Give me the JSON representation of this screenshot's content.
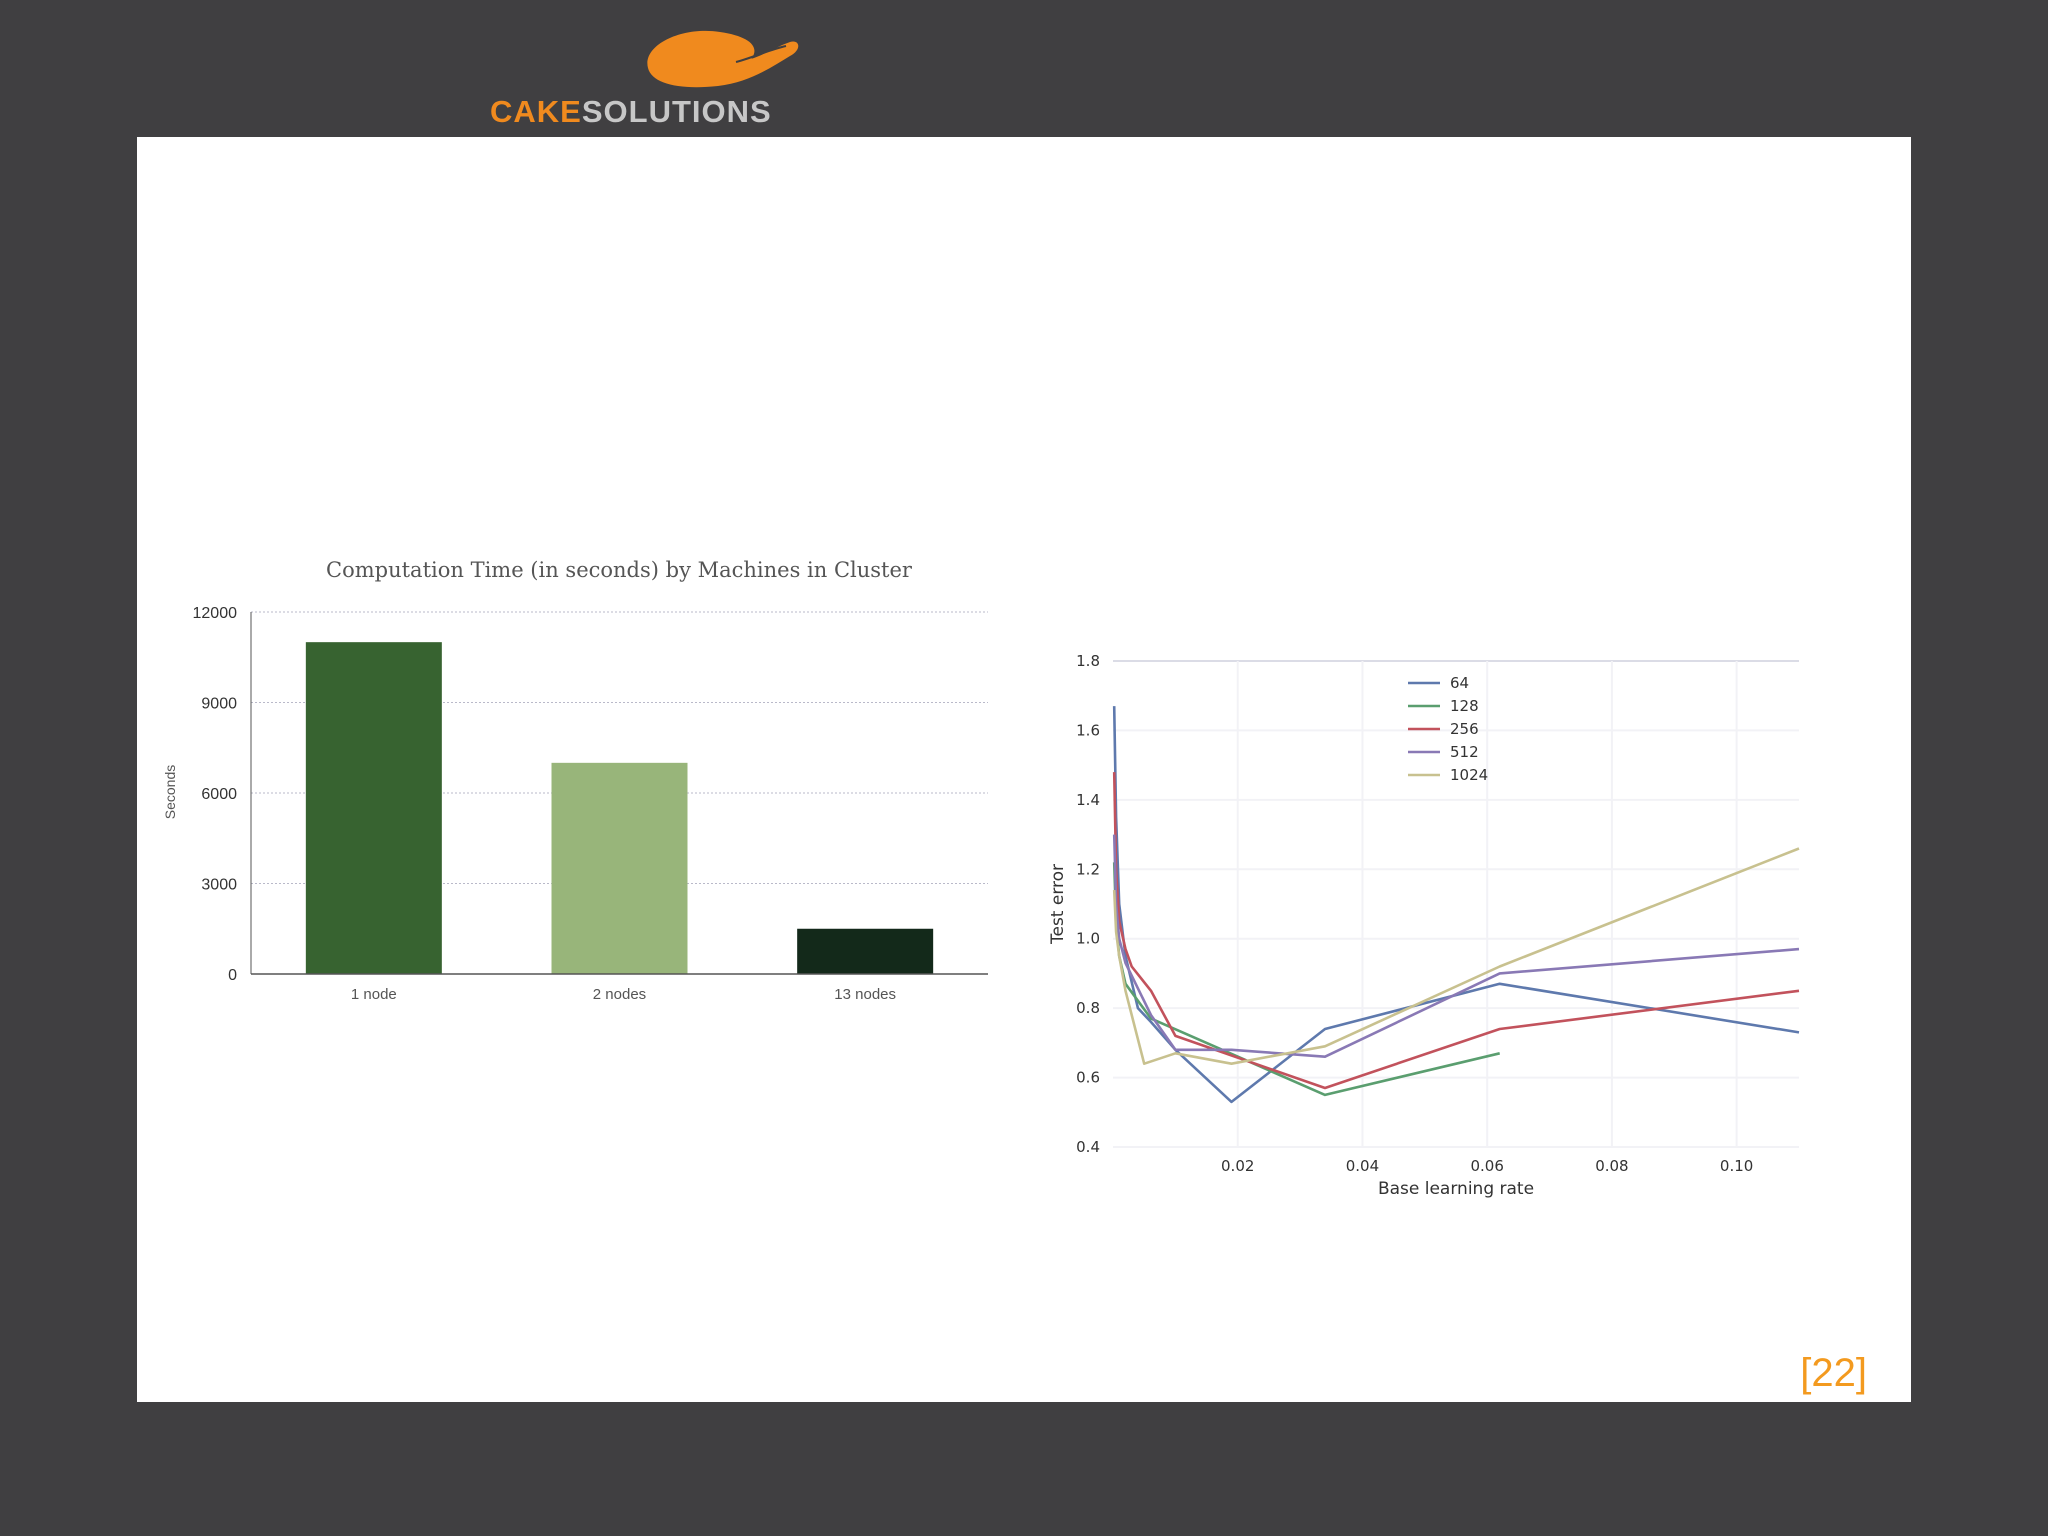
{
  "logo": {
    "text_part1": "CAKE",
    "text_part2": "SOLUTIONS",
    "colors": {
      "orange": "#f08a1e",
      "grey": "#c7c7c7"
    }
  },
  "slide": {
    "page_number": "[22]",
    "page_number_color": "#f39a1f",
    "background": "#ffffff",
    "frame": "#403f41"
  },
  "chart_data": [
    {
      "type": "bar",
      "title": "Computation Time (in seconds) by Machines in Cluster",
      "xlabel": "",
      "ylabel": "Seconds",
      "categories": [
        "1 node",
        "2 nodes",
        "13 nodes"
      ],
      "values": [
        11000,
        7000,
        1500
      ],
      "colors": [
        "#376330",
        "#98b57a",
        "#13291a"
      ],
      "ylim": [
        0,
        12000
      ],
      "yticks": [
        0,
        3000,
        6000,
        9000,
        12000
      ],
      "grid": true
    },
    {
      "type": "line",
      "title": "",
      "xlabel": "Base learning rate",
      "ylabel": "Test error",
      "xlim": [
        0,
        0.11
      ],
      "ylim": [
        0.4,
        1.8
      ],
      "xticks": [
        0.02,
        0.04,
        0.06,
        0.08,
        0.1
      ],
      "xtick_labels": [
        "0.02",
        "0.04",
        "0.06",
        "0.08",
        "0.10"
      ],
      "yticks": [
        0.4,
        0.6,
        0.8,
        1.0,
        1.2,
        1.4,
        1.6,
        1.8
      ],
      "ytick_labels": [
        "0.4",
        "0.6",
        "0.8",
        "1.0",
        "1.2",
        "1.4",
        "1.6",
        "1.8"
      ],
      "grid": true,
      "legend_position": "top-center",
      "series": [
        {
          "name": "64",
          "color": "#5e79ad",
          "x": [
            0.0002,
            0.0005,
            0.001,
            0.002,
            0.004,
            0.0061,
            0.01,
            0.019,
            0.034,
            0.062,
            0.11
          ],
          "y": [
            1.67,
            1.35,
            1.1,
            0.95,
            0.8,
            0.76,
            0.68,
            0.53,
            0.74,
            0.87,
            0.73
          ]
        },
        {
          "name": "128",
          "color": "#5a9e6f",
          "x": [
            0.0002,
            0.0005,
            0.001,
            0.002,
            0.0061,
            0.034,
            0.062
          ],
          "y": [
            1.22,
            1.05,
            0.95,
            0.87,
            0.77,
            0.55,
            0.67
          ]
        },
        {
          "name": "256",
          "color": "#c2525c",
          "x": [
            0.0002,
            0.0005,
            0.001,
            0.002,
            0.003,
            0.0061,
            0.01,
            0.034,
            0.062,
            0.11
          ],
          "y": [
            1.48,
            1.2,
            1.05,
            0.97,
            0.92,
            0.85,
            0.72,
            0.57,
            0.74,
            0.85
          ]
        },
        {
          "name": "512",
          "color": "#8979b5",
          "x": [
            0.0002,
            0.0005,
            0.001,
            0.002,
            0.0061,
            0.01,
            0.019,
            0.034,
            0.062,
            0.11
          ],
          "y": [
            1.3,
            1.1,
            1.0,
            0.93,
            0.78,
            0.68,
            0.68,
            0.66,
            0.9,
            0.97
          ]
        },
        {
          "name": "1024",
          "color": "#c8c18f",
          "x": [
            0.0002,
            0.0005,
            0.001,
            0.002,
            0.005,
            0.01,
            0.019,
            0.034,
            0.062,
            0.11
          ],
          "y": [
            1.14,
            1.02,
            0.95,
            0.85,
            0.64,
            0.67,
            0.64,
            0.69,
            0.92,
            1.26
          ]
        }
      ]
    }
  ]
}
